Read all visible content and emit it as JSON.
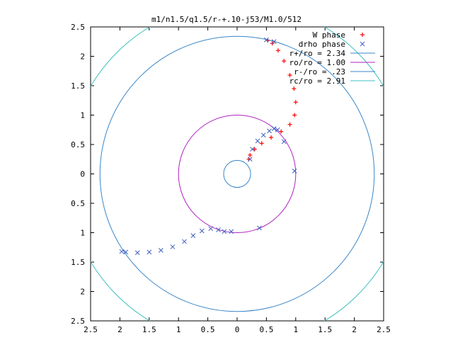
{
  "chart_data": {
    "type": "scatter",
    "title": "m1/n1.5/q1.5/r-+.10-j53/M1.0/512",
    "xlabel": "",
    "ylabel": "",
    "xlim": [
      -2.5,
      2.5
    ],
    "ylim": [
      -2.5,
      2.5
    ],
    "x_ticks": [
      -2.5,
      -2,
      -1.5,
      -1,
      -0.5,
      0,
      0.5,
      1,
      1.5,
      2,
      2.5
    ],
    "y_ticks": [
      -2.5,
      -2,
      -1.5,
      -1,
      -0.5,
      0,
      0.5,
      1,
      1.5,
      2,
      2.5
    ],
    "x_tick_labels": [
      "2.5",
      "2",
      "1.5",
      "1",
      "0.5",
      "0",
      "0.5",
      "1",
      "1.5",
      "2",
      "2.5"
    ],
    "y_tick_labels": [
      "2.5",
      "2",
      "1.5",
      "1",
      "0.5",
      "0",
      "0.5",
      "1",
      "1.5",
      "2",
      "2.5"
    ],
    "grid": false,
    "legend_position": "top-right",
    "series": [
      {
        "name": "W phase",
        "marker": "+",
        "color": "#ff0000",
        "points": [
          [
            0.52,
            2.27
          ],
          [
            0.6,
            2.22
          ],
          [
            0.7,
            2.1
          ],
          [
            0.8,
            1.92
          ],
          [
            0.9,
            1.68
          ],
          [
            0.97,
            1.45
          ],
          [
            1.0,
            1.22
          ],
          [
            0.98,
            1.0
          ],
          [
            0.9,
            0.84
          ],
          [
            0.75,
            0.72
          ],
          [
            0.58,
            0.62
          ],
          [
            0.42,
            0.52
          ],
          [
            0.3,
            0.42
          ],
          [
            0.22,
            0.32
          ],
          [
            0.2,
            0.25
          ]
        ]
      },
      {
        "name": "drho phase",
        "marker": "x",
        "color": "#4060c0",
        "points": [
          [
            0.5,
            2.28
          ],
          [
            0.63,
            2.25
          ],
          [
            0.22,
            0.25
          ],
          [
            0.26,
            0.42
          ],
          [
            0.35,
            0.56
          ],
          [
            0.45,
            0.66
          ],
          [
            0.55,
            0.73
          ],
          [
            0.63,
            0.77
          ],
          [
            0.69,
            0.75
          ],
          [
            0.8,
            0.55
          ],
          [
            0.98,
            0.05
          ],
          [
            0.38,
            -0.92
          ],
          [
            -0.1,
            -0.98
          ],
          [
            -0.22,
            -0.98
          ],
          [
            -0.32,
            -0.95
          ],
          [
            -0.45,
            -0.93
          ],
          [
            -0.6,
            -0.97
          ],
          [
            -0.75,
            -1.05
          ],
          [
            -0.9,
            -1.15
          ],
          [
            -1.1,
            -1.24
          ],
          [
            -1.3,
            -1.3
          ],
          [
            -1.5,
            -1.33
          ],
          [
            -1.7,
            -1.34
          ],
          [
            -1.9,
            -1.33
          ],
          [
            -1.97,
            -1.32
          ]
        ]
      },
      {
        "name": "r+/ro = 2.34",
        "type": "circle",
        "radius": 2.34,
        "color": "#3a86c8"
      },
      {
        "name": "ro/ro = 1.00",
        "type": "circle",
        "radius": 1.0,
        "color": "#b020c0"
      },
      {
        "name": "r-/ro = .23",
        "type": "circle",
        "radius": 0.23,
        "color": "#3a86c8"
      },
      {
        "name": "rc/ro = 2.91",
        "type": "circle",
        "radius": 2.91,
        "color": "#40c0c0"
      }
    ]
  }
}
